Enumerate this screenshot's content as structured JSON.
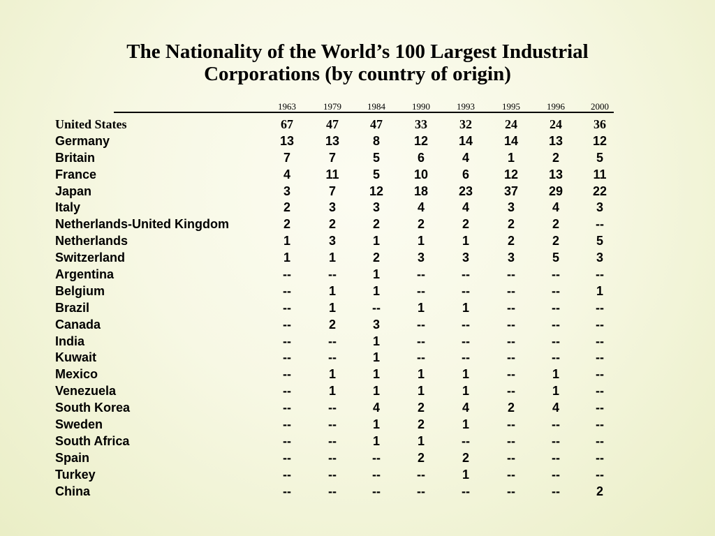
{
  "title_line1": "The Nationality of the World’s 100 Largest Industrial",
  "title_line2": "Corporations (by country of origin)",
  "years": [
    "1963",
    "1979",
    "1984",
    "1990",
    "1993",
    "1995",
    "1996",
    "2000"
  ],
  "rows": [
    {
      "country": "United States",
      "values": [
        "67",
        "47",
        "47",
        "33",
        "32",
        "24",
        "24",
        "36"
      ]
    },
    {
      "country": "Germany",
      "values": [
        "13",
        "13",
        "8",
        "12",
        "14",
        "14",
        "13",
        "12"
      ]
    },
    {
      "country": "Britain",
      "values": [
        "7",
        "7",
        "5",
        "6",
        "4",
        "1",
        "2",
        "5"
      ]
    },
    {
      "country": "France",
      "values": [
        "4",
        "11",
        "5",
        "10",
        "6",
        "12",
        "13",
        "11"
      ]
    },
    {
      "country": "Japan",
      "values": [
        "3",
        "7",
        "12",
        "18",
        "23",
        "37",
        "29",
        "22"
      ]
    },
    {
      "country": "Italy",
      "values": [
        "2",
        "3",
        "3",
        "4",
        "4",
        "3",
        "4",
        "3"
      ]
    },
    {
      "country": "Netherlands-United Kingdom",
      "values": [
        "2",
        "2",
        "2",
        "2",
        "2",
        "2",
        "2",
        "--"
      ]
    },
    {
      "country": "Netherlands",
      "values": [
        "1",
        "3",
        "1",
        "1",
        "1",
        "2",
        "2",
        "5"
      ]
    },
    {
      "country": "Switzerland",
      "values": [
        "1",
        "1",
        "2",
        "3",
        "3",
        "3",
        "5",
        "3"
      ]
    },
    {
      "country": "Argentina",
      "values": [
        "--",
        "--",
        "1",
        "--",
        "--",
        "--",
        "--",
        "--"
      ]
    },
    {
      "country": "Belgium",
      "values": [
        "--",
        "1",
        "1",
        "--",
        "--",
        "--",
        "--",
        "1"
      ]
    },
    {
      "country": "Brazil",
      "values": [
        "--",
        "1",
        "--",
        "1",
        "1",
        "--",
        "--",
        "--"
      ]
    },
    {
      "country": "Canada",
      "values": [
        "--",
        "2",
        "3",
        "--",
        "--",
        "--",
        "--",
        "--"
      ]
    },
    {
      "country": "India",
      "values": [
        "--",
        "--",
        "1",
        "--",
        "--",
        "--",
        "--",
        "--"
      ]
    },
    {
      "country": "Kuwait",
      "values": [
        "--",
        "--",
        "1",
        "--",
        "--",
        "--",
        "--",
        "--"
      ]
    },
    {
      "country": "Mexico",
      "values": [
        "--",
        "1",
        "1",
        "1",
        "1",
        "--",
        "1",
        "--"
      ]
    },
    {
      "country": "Venezuela",
      "values": [
        "--",
        "1",
        "1",
        "1",
        "1",
        "--",
        "1",
        "--"
      ]
    },
    {
      "country": "South Korea",
      "values": [
        "--",
        "--",
        "4",
        "2",
        "4",
        "2",
        "4",
        "--"
      ]
    },
    {
      "country": "Sweden",
      "values": [
        "--",
        "--",
        "1",
        "2",
        "1",
        "--",
        "--",
        "--"
      ]
    },
    {
      "country": "South Africa",
      "values": [
        "--",
        "--",
        "1",
        "1",
        "--",
        "--",
        "--",
        "--"
      ]
    },
    {
      "country": "Spain",
      "values": [
        "--",
        "--",
        "--",
        "2",
        "2",
        "--",
        "--",
        "--"
      ]
    },
    {
      "country": "Turkey",
      "values": [
        "--",
        "--",
        "--",
        "--",
        "1",
        "--",
        "--",
        "--"
      ]
    },
    {
      "country": "China",
      "values": [
        "--",
        "--",
        "--",
        "--",
        "--",
        "--",
        "--",
        "2"
      ]
    }
  ]
}
